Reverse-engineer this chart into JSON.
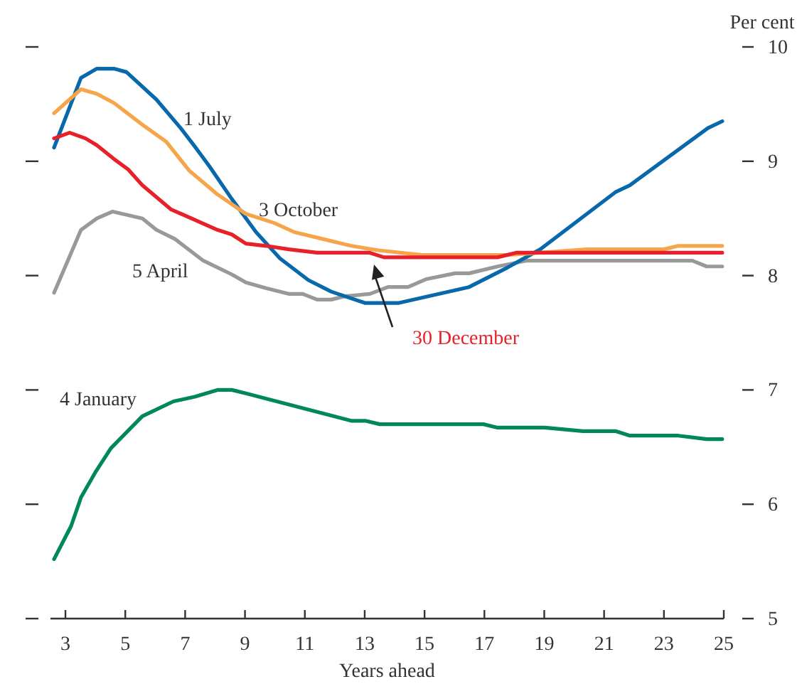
{
  "chart_data": {
    "type": "line",
    "xlabel": "Years ahead",
    "ylabel": "Per cent",
    "xlim": [
      2.5,
      25
    ],
    "xticks": [
      3,
      5,
      7,
      9,
      11,
      13,
      15,
      17,
      19,
      21,
      23,
      25
    ],
    "ylim": [
      5,
      10
    ],
    "yticks": [
      5,
      6,
      7,
      8,
      9,
      10
    ],
    "grid": false,
    "legend": false,
    "line_style": "solid",
    "marker": "none",
    "series": [
      {
        "name": "4 January",
        "color": "#00875a",
        "x": [
          2.62,
          3.19,
          3.52,
          4.0,
          4.52,
          5.57,
          6.61,
          7.32,
          8.08,
          8.56,
          9.03,
          12.55,
          13.02,
          13.5,
          16.97,
          17.44,
          19.01,
          20.29,
          21.38,
          21.86,
          23.48,
          24.43,
          24.95
        ],
        "values": [
          5.52,
          5.81,
          6.06,
          6.28,
          6.49,
          6.77,
          6.9,
          6.94,
          7.0,
          7.0,
          6.97,
          6.73,
          6.73,
          6.7,
          6.7,
          6.67,
          6.67,
          6.64,
          6.64,
          6.6,
          6.6,
          6.57,
          6.57
        ]
      },
      {
        "name": "5 April",
        "color": "#999999",
        "x": [
          2.62,
          3.52,
          4.05,
          4.57,
          5.57,
          6.04,
          6.66,
          7.61,
          8.56,
          9.03,
          9.7,
          10.46,
          10.93,
          11.41,
          11.88,
          12.36,
          13.17,
          13.78,
          14.45,
          15.07,
          16.02,
          16.49,
          17.44,
          18.39,
          23.95,
          24.43,
          24.95
        ],
        "values": [
          7.85,
          8.4,
          8.5,
          8.56,
          8.5,
          8.4,
          8.32,
          8.13,
          8.01,
          7.94,
          7.89,
          7.84,
          7.84,
          7.79,
          7.79,
          7.82,
          7.84,
          7.9,
          7.9,
          7.97,
          8.02,
          8.02,
          8.08,
          8.13,
          8.13,
          8.08,
          8.08
        ]
      },
      {
        "name": "1 July",
        "color": "#0868ac",
        "x": [
          2.62,
          3.52,
          4.05,
          4.62,
          5.04,
          6.04,
          6.85,
          7.32,
          7.8,
          8.56,
          9.37,
          10.17,
          11.12,
          11.88,
          13.02,
          14.12,
          16.49,
          17.77,
          18.87,
          21.38,
          21.86,
          24.47,
          24.95
        ],
        "values": [
          9.12,
          9.73,
          9.81,
          9.81,
          9.78,
          9.54,
          9.29,
          9.13,
          8.96,
          8.67,
          8.38,
          8.15,
          7.96,
          7.86,
          7.76,
          7.76,
          7.9,
          8.07,
          8.23,
          8.73,
          8.79,
          9.29,
          9.35
        ]
      },
      {
        "name": "3 October",
        "color": "#f7a54a",
        "x": [
          2.62,
          3.52,
          4.05,
          4.62,
          5.57,
          6.37,
          7.13,
          8.08,
          9.03,
          9.98,
          10.65,
          11.6,
          12.55,
          13.5,
          14.92,
          17.77,
          20.43,
          23.0,
          23.48,
          24.95
        ],
        "values": [
          9.42,
          9.63,
          9.59,
          9.51,
          9.32,
          9.17,
          8.92,
          8.71,
          8.54,
          8.46,
          8.38,
          8.32,
          8.26,
          8.22,
          8.18,
          8.18,
          8.23,
          8.23,
          8.26,
          8.26
        ]
      },
      {
        "name": "30 December",
        "color": "#e8202a",
        "x": [
          2.62,
          3.14,
          3.67,
          4.05,
          4.62,
          5.09,
          5.57,
          6.52,
          8.08,
          8.56,
          9.03,
          9.7,
          10.46,
          11.41,
          13.17,
          13.64,
          17.44,
          18.06,
          24.95
        ],
        "values": [
          9.2,
          9.25,
          9.2,
          9.14,
          9.02,
          8.93,
          8.79,
          8.58,
          8.4,
          8.36,
          8.28,
          8.26,
          8.23,
          8.2,
          8.2,
          8.16,
          8.16,
          8.2,
          8.2
        ]
      }
    ]
  }
}
